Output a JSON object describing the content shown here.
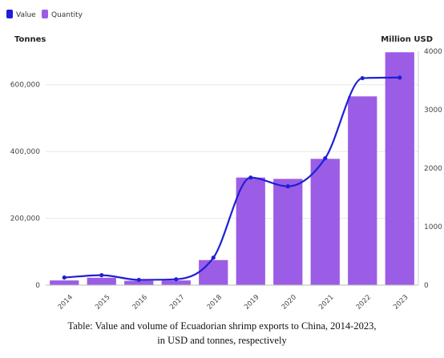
{
  "caption": {
    "line1": "Table: Value and volume of Ecuadorian shrimp exports to China, 2014-2023,",
    "line2": "in USD and tonnes, respectively"
  },
  "chart_data": {
    "type": "bar",
    "categories": [
      "2014",
      "2015",
      "2016",
      "2017",
      "2018",
      "2019",
      "2020",
      "2021",
      "2022",
      "2023"
    ],
    "series": [
      {
        "name": "Quantity",
        "type": "bar",
        "axis": "left",
        "color": "#9b5de5",
        "values": [
          14000,
          22000,
          13000,
          14000,
          75000,
          322000,
          318000,
          378000,
          565000,
          697000
        ]
      },
      {
        "name": "Value",
        "type": "line",
        "axis": "right",
        "color": "#1f1fd6",
        "values": [
          130,
          170,
          90,
          100,
          470,
          1840,
          1690,
          2170,
          3540,
          3550
        ]
      }
    ],
    "left_axis": {
      "title": "Tonnes",
      "range": [
        0,
        700000
      ],
      "ticks": [
        0,
        200000,
        400000,
        600000
      ],
      "tick_labels": [
        "0",
        "200,000",
        "400,000",
        "600,000"
      ]
    },
    "right_axis": {
      "title": "Million USD",
      "range": [
        0,
        4000
      ],
      "ticks": [
        0,
        1000,
        2000,
        3000,
        4000
      ],
      "tick_labels": [
        "0",
        "1000",
        "2000",
        "3000",
        "4000"
      ]
    },
    "legend": {
      "placement": "top-left",
      "items": [
        {
          "label": "Value",
          "color": "#1f1fd6"
        },
        {
          "label": "Quantity",
          "color": "#9b5de5"
        }
      ]
    },
    "grid": true
  }
}
